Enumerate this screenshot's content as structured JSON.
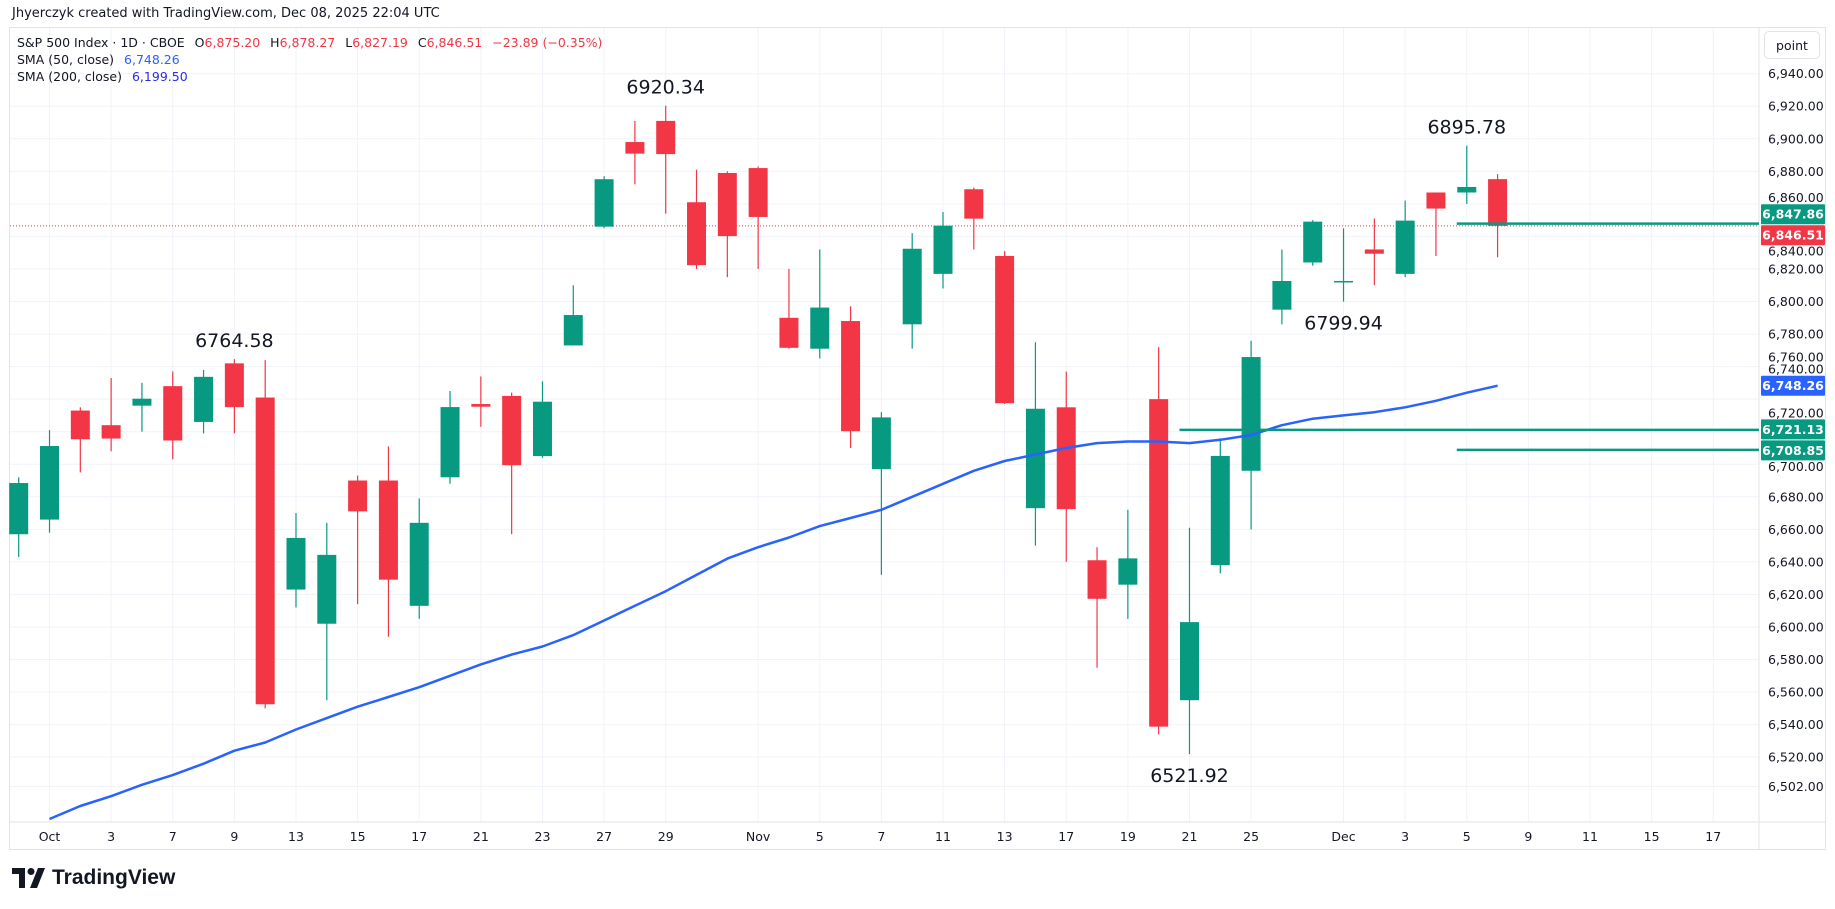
{
  "credit": "Jhyerczyk created with TradingView.com, Dec 08, 2025 22:04 UTC",
  "legend": {
    "symbol": "S&P 500 Index · 1D · CBOE",
    "o_label": "O",
    "o_value": "6,875.20",
    "h_label": "H",
    "h_value": "6,878.27",
    "l_label": "L",
    "l_value": "6,827.19",
    "c_label": "C",
    "c_value": "6,846.51",
    "change": "−23.89 (−0.35%)",
    "sma50_label": "SMA (50, close)",
    "sma50_value": "6,748.26",
    "sma200_label": "SMA (200, close)",
    "sma200_value": "6,199.50"
  },
  "scale_button": "point",
  "logo_text": "TradingView",
  "colors": {
    "up": "#089981",
    "down": "#f23645",
    "sma50": "#2962ff",
    "sma200_text": "#2b2bf0",
    "grid": "#f0f3fa",
    "last_price_line": "#f23645"
  },
  "chart_data": {
    "type": "candlestick",
    "title": "",
    "ylim": [
      6495,
      6962
    ],
    "grid": true,
    "y_ticks": [
      "6,502.00",
      "6,520.00",
      "6,540.00",
      "6,560.00",
      "6,580.00",
      "6,600.00",
      "6,620.00",
      "6,640.00",
      "6,660.00",
      "6,680.00",
      "6,700.00",
      "6,720.00",
      "6,740.00",
      "6,760.00",
      "6,780.00",
      "6,800.00",
      "6,820.00",
      "6,840.00",
      "6,860.00",
      "6,880.00",
      "6,900.00",
      "6,920.00",
      "6,940.00"
    ],
    "x_ticks": [
      {
        "label": "Oct",
        "date": "2025-10-01"
      },
      {
        "label": "3",
        "date": "2025-10-03"
      },
      {
        "label": "7",
        "date": "2025-10-07"
      },
      {
        "label": "9",
        "date": "2025-10-09"
      },
      {
        "label": "13",
        "date": "2025-10-13"
      },
      {
        "label": "15",
        "date": "2025-10-15"
      },
      {
        "label": "17",
        "date": "2025-10-17"
      },
      {
        "label": "21",
        "date": "2025-10-21"
      },
      {
        "label": "23",
        "date": "2025-10-23"
      },
      {
        "label": "27",
        "date": "2025-10-27"
      },
      {
        "label": "29",
        "date": "2025-10-29"
      },
      {
        "label": "Nov",
        "date": "2025-11-03"
      },
      {
        "label": "5",
        "date": "2025-11-05"
      },
      {
        "label": "7",
        "date": "2025-11-07"
      },
      {
        "label": "11",
        "date": "2025-11-11"
      },
      {
        "label": "13",
        "date": "2025-11-13"
      },
      {
        "label": "17",
        "date": "2025-11-17"
      },
      {
        "label": "19",
        "date": "2025-11-19"
      },
      {
        "label": "21",
        "date": "2025-11-21"
      },
      {
        "label": "25",
        "date": "2025-11-25"
      },
      {
        "label": "Dec",
        "date": "2025-12-01"
      },
      {
        "label": "3",
        "date": "2025-12-03"
      },
      {
        "label": "5",
        "date": "2025-12-05"
      },
      {
        "label": "9",
        "date": "2025-12-09"
      },
      {
        "label": "11",
        "date": "2025-12-11"
      },
      {
        "label": "15",
        "date": "2025-12-15"
      },
      {
        "label": "17",
        "date": "2025-12-17"
      }
    ],
    "candles": [
      {
        "date": "2025-09-30",
        "o": 6657,
        "h": 6692,
        "l": 6643,
        "c": 6688.46
      },
      {
        "date": "2025-10-01",
        "o": 6666,
        "h": 6721,
        "l": 6658,
        "c": 6711.2
      },
      {
        "date": "2025-10-02",
        "o": 6733,
        "h": 6735,
        "l": 6695,
        "c": 6715.35
      },
      {
        "date": "2025-10-03",
        "o": 6724,
        "h": 6753,
        "l": 6708,
        "c": 6715.79
      },
      {
        "date": "2025-10-06",
        "o": 6736,
        "h": 6750,
        "l": 6720,
        "c": 6740.28
      },
      {
        "date": "2025-10-07",
        "o": 6748,
        "h": 6757,
        "l": 6703,
        "c": 6714.59
      },
      {
        "date": "2025-10-08",
        "o": 6726,
        "h": 6758,
        "l": 6719,
        "c": 6753.72
      },
      {
        "date": "2025-10-09",
        "o": 6762,
        "h": 6764.58,
        "l": 6719,
        "c": 6735.11
      },
      {
        "date": "2025-10-10",
        "o": 6741,
        "h": 6764,
        "l": 6550,
        "c": 6552.51
      },
      {
        "date": "2025-10-13",
        "o": 6623,
        "h": 6670,
        "l": 6612,
        "c": 6654.72
      },
      {
        "date": "2025-10-14",
        "o": 6602,
        "h": 6664,
        "l": 6555,
        "c": 6644.31
      },
      {
        "date": "2025-10-15",
        "o": 6690,
        "h": 6693,
        "l": 6614,
        "c": 6671.06
      },
      {
        "date": "2025-10-16",
        "o": 6690,
        "h": 6711,
        "l": 6594,
        "c": 6629.07
      },
      {
        "date": "2025-10-17",
        "o": 6613,
        "h": 6679,
        "l": 6605,
        "c": 6664.01
      },
      {
        "date": "2025-10-20",
        "o": 6692,
        "h": 6745,
        "l": 6688,
        "c": 6735.13
      },
      {
        "date": "2025-10-21",
        "o": 6737,
        "h": 6754,
        "l": 6723,
        "c": 6735.35
      },
      {
        "date": "2025-10-22",
        "o": 6742,
        "h": 6744,
        "l": 6657,
        "c": 6699.4
      },
      {
        "date": "2025-10-23",
        "o": 6705,
        "h": 6751,
        "l": 6704,
        "c": 6738.44
      },
      {
        "date": "2025-10-24",
        "o": 6773,
        "h": 6810,
        "l": 6773,
        "c": 6791.69
      },
      {
        "date": "2025-10-27",
        "o": 6846,
        "h": 6877,
        "l": 6845,
        "c": 6875.16
      },
      {
        "date": "2025-10-28",
        "o": 6898,
        "h": 6911,
        "l": 6872,
        "c": 6890.89
      },
      {
        "date": "2025-10-29",
        "o": 6911,
        "h": 6920.34,
        "l": 6854,
        "c": 6890.59
      },
      {
        "date": "2025-10-30",
        "o": 6861,
        "h": 6881,
        "l": 6820,
        "c": 6822.34
      },
      {
        "date": "2025-10-31",
        "o": 6879,
        "h": 6880,
        "l": 6815,
        "c": 6840.2
      },
      {
        "date": "2025-11-03",
        "o": 6882,
        "h": 6883,
        "l": 6820,
        "c": 6851.97
      },
      {
        "date": "2025-11-04",
        "o": 6790,
        "h": 6820,
        "l": 6771,
        "c": 6771.55
      },
      {
        "date": "2025-11-05",
        "o": 6771,
        "h": 6832,
        "l": 6765,
        "c": 6796.29
      },
      {
        "date": "2025-11-06",
        "o": 6788,
        "h": 6797,
        "l": 6710,
        "c": 6720.32
      },
      {
        "date": "2025-11-07",
        "o": 6697,
        "h": 6732,
        "l": 6632,
        "c": 6728.8
      },
      {
        "date": "2025-11-10",
        "o": 6786,
        "h": 6842,
        "l": 6771,
        "c": 6832.43
      },
      {
        "date": "2025-11-11",
        "o": 6817,
        "h": 6855,
        "l": 6808,
        "c": 6846.61
      },
      {
        "date": "2025-11-12",
        "o": 6869,
        "h": 6870,
        "l": 6832,
        "c": 6850.92
      },
      {
        "date": "2025-11-13",
        "o": 6828,
        "h": 6831,
        "l": 6737,
        "c": 6737.49
      },
      {
        "date": "2025-11-14",
        "o": 6673,
        "h": 6775,
        "l": 6650,
        "c": 6734.11
      },
      {
        "date": "2025-11-17",
        "o": 6735,
        "h": 6757,
        "l": 6640,
        "c": 6672.41
      },
      {
        "date": "2025-11-18",
        "o": 6641,
        "h": 6649,
        "l": 6575,
        "c": 6617.32
      },
      {
        "date": "2025-11-19",
        "o": 6626,
        "h": 6672,
        "l": 6605,
        "c": 6642.16
      },
      {
        "date": "2025-11-20",
        "o": 6740,
        "h": 6772,
        "l": 6534,
        "c": 6538.76
      },
      {
        "date": "2025-11-21",
        "o": 6555,
        "h": 6661,
        "l": 6521.92,
        "c": 6602.99
      },
      {
        "date": "2025-11-24",
        "o": 6638,
        "h": 6716,
        "l": 6633,
        "c": 6705.12
      },
      {
        "date": "2025-11-25",
        "o": 6696,
        "h": 6776,
        "l": 6660,
        "c": 6765.88
      },
      {
        "date": "2025-11-26",
        "o": 6795,
        "h": 6832,
        "l": 6786,
        "c": 6812.61
      },
      {
        "date": "2025-11-28",
        "o": 6824,
        "h": 6850,
        "l": 6822,
        "c": 6849.09
      },
      {
        "date": "2025-12-01",
        "o": 6812,
        "h": 6845,
        "l": 6799.94,
        "c": 6812.63
      },
      {
        "date": "2025-12-02",
        "o": 6832,
        "h": 6851,
        "l": 6810,
        "c": 6829.37
      },
      {
        "date": "2025-12-03",
        "o": 6817,
        "h": 6862,
        "l": 6815,
        "c": 6849.72
      },
      {
        "date": "2025-12-04",
        "o": 6867,
        "h": 6867,
        "l": 6828,
        "c": 6857.12
      },
      {
        "date": "2025-12-05",
        "o": 6867,
        "h": 6895.78,
        "l": 6860,
        "c": 6870.4
      },
      {
        "date": "2025-12-08",
        "o": 6875.2,
        "h": 6878.27,
        "l": 6827.19,
        "c": 6846.51
      }
    ],
    "sma50": {
      "name": "SMA (50, close)",
      "start_date": "2025-10-01",
      "values": [
        6482,
        6490,
        6496,
        6503,
        6509,
        6516,
        6524,
        6529,
        6537,
        6544,
        6551,
        6557,
        6563,
        6570,
        6577,
        6583,
        6588,
        6595,
        6604,
        6613,
        6622,
        6632,
        6642,
        6649,
        6655,
        6662,
        6667,
        6672,
        6680,
        6688,
        6696,
        6702,
        6706,
        6710,
        6713,
        6714,
        6714,
        6713,
        6715,
        6718,
        6724,
        6728,
        6730,
        6732,
        6735,
        6739,
        6744,
        6748.26
      ]
    },
    "horizontal_lines": [
      {
        "price": 6847.86,
        "label": "6,847.86",
        "from_date": "2025-12-05",
        "color": "#089981"
      },
      {
        "price": 6721.13,
        "label": "6,721.13",
        "from_date": "2025-11-21",
        "color": "#089981"
      },
      {
        "price": 6708.85,
        "label": "6,708.85",
        "from_date": "2025-12-05",
        "color": "#089981"
      }
    ],
    "last_price": {
      "price": 6846.51,
      "label": "6,846.51"
    },
    "sma_axis_label": {
      "price": 6748.26,
      "label": "6,748.26"
    },
    "annotations": [
      {
        "text": "6764.58",
        "date": "2025-10-09",
        "price": 6764.58,
        "position": "above"
      },
      {
        "text": "6920.34",
        "date": "2025-10-29",
        "price": 6920.34,
        "position": "above"
      },
      {
        "text": "6895.78",
        "date": "2025-12-05",
        "price": 6895.78,
        "position": "above"
      },
      {
        "text": "6799.94",
        "date": "2025-12-01",
        "price": 6799.94,
        "position": "below"
      },
      {
        "text": "6521.92",
        "date": "2025-11-21",
        "price": 6521.92,
        "position": "below"
      }
    ]
  }
}
